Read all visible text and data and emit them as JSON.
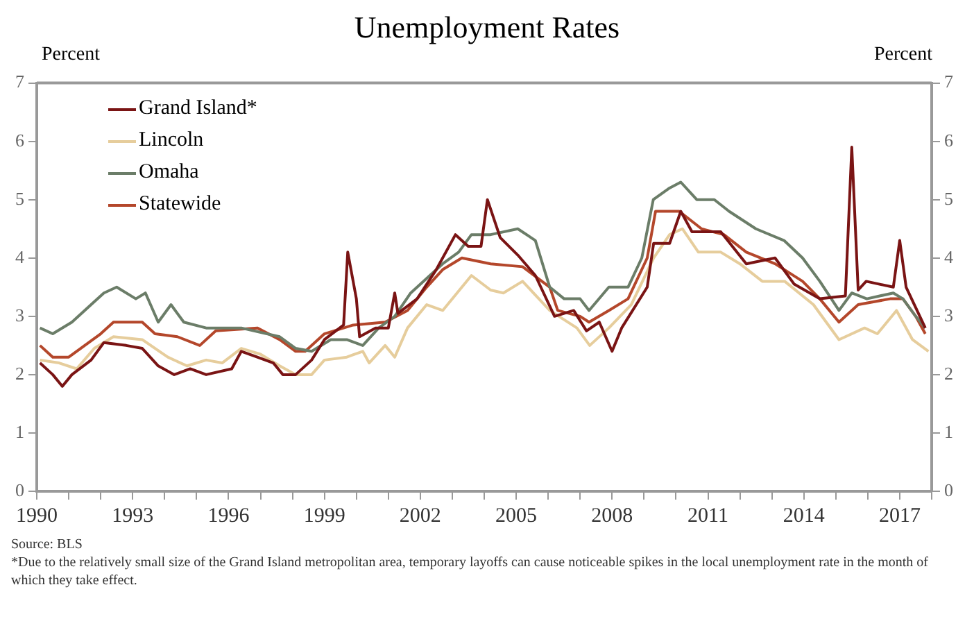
{
  "chart_data": {
    "type": "line",
    "title": "Unemployment Rates",
    "ylabel": "Percent",
    "y2label": "Percent",
    "annotations": [
      "Source: BLS",
      "*Due to the relatively small size of the Grand Island metropolitan area, temporary layoffs can cause noticeable spikes in the local unemployment rate in the month of which they take effect."
    ],
    "xlim": [
      1990,
      2018
    ],
    "xticks": [
      1990,
      {
        "value": 1991,
        "label": null
      },
      {
        "value": 1992,
        "label": null
      },
      1993,
      {
        "value": 1994,
        "label": null
      },
      {
        "value": 1995,
        "label": null
      },
      1996,
      {
        "value": 1997,
        "label": null
      },
      {
        "value": 1998,
        "label": null
      },
      1999,
      {
        "value": 2000,
        "label": null
      },
      {
        "value": 2001,
        "label": null
      },
      2002,
      {
        "value": 2003,
        "label": null
      },
      {
        "value": 2004,
        "label": null
      },
      2005,
      {
        "value": 2006,
        "label": null
      },
      {
        "value": 2007,
        "label": null
      },
      2008,
      {
        "value": 2009,
        "label": null
      },
      {
        "value": 2010,
        "label": null
      },
      2011,
      {
        "value": 2012,
        "label": null
      },
      {
        "value": 2013,
        "label": null
      },
      2014,
      {
        "value": 2015,
        "label": null
      },
      {
        "value": 2016,
        "label": null
      },
      2017,
      {
        "value": 2018,
        "label": null
      }
    ],
    "ylim": [
      0,
      7
    ],
    "yticks": [
      0,
      1,
      2,
      3,
      4,
      5,
      6,
      7
    ],
    "y2lim": [
      0,
      7
    ],
    "y2ticks": [
      0,
      1,
      2,
      3,
      4,
      5,
      6,
      7
    ],
    "grid": false,
    "legend": "top left",
    "marker": "none",
    "line_style": "solid",
    "series": [
      {
        "name": "Grand Island*",
        "color": "#7a1414",
        "x": [
          1990.1,
          1990.5,
          1990.8,
          1991.1,
          1991.7,
          1992.1,
          1992.8,
          1993.3,
          1993.8,
          1994.3,
          1994.8,
          1995.3,
          1996.1,
          1996.4,
          1996.9,
          1997.4,
          1997.7,
          1998.1,
          1998.6,
          1999.0,
          1999.6,
          1999.73,
          2000.0,
          2000.1,
          2000.6,
          2001.0,
          2001.2,
          2001.3,
          2001.9,
          2002.5,
          2003.1,
          2003.5,
          2003.9,
          2004.1,
          2004.5,
          2005.05,
          2005.6,
          2006.2,
          2006.8,
          2007.2,
          2007.6,
          2008.0,
          2008.3,
          2009.1,
          2009.3,
          2009.8,
          2010.15,
          2010.5,
          2011.4,
          2012.2,
          2013.1,
          2013.7,
          2014.5,
          2015.3,
          2015.5,
          2015.7,
          2015.95,
          2016.8,
          2017.0,
          2017.2,
          2017.8
        ],
        "values": [
          2.2,
          2.0,
          1.8,
          2.0,
          2.25,
          2.55,
          2.5,
          2.45,
          2.15,
          2.0,
          2.1,
          2.0,
          2.1,
          2.4,
          2.3,
          2.2,
          2.0,
          2.0,
          2.25,
          2.6,
          2.85,
          4.1,
          3.3,
          2.65,
          2.8,
          2.8,
          3.4,
          3.05,
          3.3,
          3.8,
          4.4,
          4.2,
          4.2,
          5.0,
          4.35,
          4.05,
          3.7,
          3.0,
          3.1,
          2.75,
          2.9,
          2.4,
          2.8,
          3.5,
          4.25,
          4.25,
          4.8,
          4.45,
          4.45,
          3.9,
          4.0,
          3.55,
          3.3,
          3.35,
          5.9,
          3.45,
          3.6,
          3.5,
          4.3,
          3.5,
          2.8
        ]
      },
      {
        "name": "Lincoln",
        "color": "#e6cd9c",
        "x": [
          1990.1,
          1990.7,
          1991.25,
          1991.8,
          1992.4,
          1993.3,
          1994.1,
          1994.7,
          1995.3,
          1995.8,
          1996.4,
          1997.0,
          1997.6,
          1998.1,
          1998.6,
          1999.0,
          1999.7,
          2000.2,
          2000.4,
          2000.9,
          2001.2,
          2001.6,
          2002.2,
          2002.7,
          2003.6,
          2004.2,
          2004.6,
          2005.2,
          2006.05,
          2006.9,
          2007.3,
          2007.9,
          2008.6,
          2009.3,
          2009.8,
          2010.2,
          2010.7,
          2011.4,
          2012.0,
          2012.7,
          2013.4,
          2014.3,
          2015.1,
          2015.9,
          2016.3,
          2016.9,
          2017.4,
          2017.9
        ],
        "values": [
          2.25,
          2.2,
          2.1,
          2.45,
          2.65,
          2.6,
          2.3,
          2.15,
          2.25,
          2.2,
          2.45,
          2.35,
          2.15,
          2.0,
          2.0,
          2.25,
          2.3,
          2.4,
          2.2,
          2.5,
          2.3,
          2.8,
          3.2,
          3.1,
          3.7,
          3.45,
          3.4,
          3.6,
          3.1,
          2.8,
          2.5,
          2.8,
          3.2,
          4.0,
          4.4,
          4.5,
          4.1,
          4.1,
          3.9,
          3.6,
          3.6,
          3.2,
          2.6,
          2.8,
          2.7,
          3.1,
          2.6,
          2.4
        ]
      },
      {
        "name": "Omaha",
        "color": "#6b7d68",
        "x": [
          1990.1,
          1990.5,
          1991.1,
          1991.7,
          1992.1,
          1992.5,
          1993.1,
          1993.4,
          1993.8,
          1994.2,
          1994.6,
          1995.3,
          1996.4,
          1997.6,
          1998.1,
          1998.6,
          1999.2,
          1999.7,
          2000.2,
          2000.7,
          2001.2,
          2001.7,
          2002.3,
          2002.7,
          2003.2,
          2003.6,
          2004.2,
          2005.05,
          2005.6,
          2006.05,
          2006.5,
          2007.0,
          2007.28,
          2007.9,
          2008.5,
          2008.93,
          2009.29,
          2009.8,
          2010.15,
          2010.65,
          2011.2,
          2011.66,
          2012.5,
          2013.38,
          2013.96,
          2014.5,
          2015.1,
          2015.5,
          2015.97,
          2016.8,
          2017.1,
          2017.5,
          2017.8
        ],
        "values": [
          2.8,
          2.7,
          2.9,
          3.2,
          3.4,
          3.5,
          3.3,
          3.4,
          2.9,
          3.2,
          2.9,
          2.8,
          2.8,
          2.65,
          2.45,
          2.4,
          2.6,
          2.6,
          2.5,
          2.8,
          3.0,
          3.4,
          3.7,
          3.9,
          4.1,
          4.4,
          4.4,
          4.5,
          4.3,
          3.5,
          3.3,
          3.3,
          3.1,
          3.5,
          3.5,
          4.0,
          5.0,
          5.2,
          5.3,
          5.0,
          5.0,
          4.8,
          4.5,
          4.3,
          4.0,
          3.6,
          3.1,
          3.4,
          3.3,
          3.4,
          3.3,
          3.0,
          2.8
        ]
      },
      {
        "name": "Statewide",
        "color": "#b4472b",
        "x": [
          1990.1,
          1990.5,
          1991.0,
          1991.5,
          1992.0,
          1992.4,
          1993.3,
          1993.7,
          1994.4,
          1995.1,
          1995.6,
          1996.9,
          1997.6,
          1998.1,
          1998.4,
          1999.0,
          1999.9,
          2000.9,
          2001.6,
          2002.2,
          2002.7,
          2003.3,
          2004.2,
          2005.2,
          2006.05,
          2006.3,
          2007.0,
          2007.28,
          2007.9,
          2008.5,
          2009.1,
          2009.36,
          2010.1,
          2010.8,
          2011.5,
          2012.2,
          2013.1,
          2013.96,
          2014.5,
          2015.1,
          2015.7,
          2016.7,
          2017.1,
          2017.5,
          2017.8
        ],
        "values": [
          2.5,
          2.3,
          2.3,
          2.5,
          2.7,
          2.9,
          2.9,
          2.7,
          2.65,
          2.5,
          2.75,
          2.8,
          2.6,
          2.4,
          2.4,
          2.7,
          2.85,
          2.9,
          3.1,
          3.5,
          3.8,
          4.0,
          3.9,
          3.85,
          3.5,
          3.1,
          3.0,
          2.9,
          3.1,
          3.3,
          4.0,
          4.8,
          4.8,
          4.5,
          4.4,
          4.1,
          3.9,
          3.6,
          3.3,
          2.9,
          3.2,
          3.3,
          3.3,
          3.0,
          2.7
        ]
      }
    ]
  }
}
